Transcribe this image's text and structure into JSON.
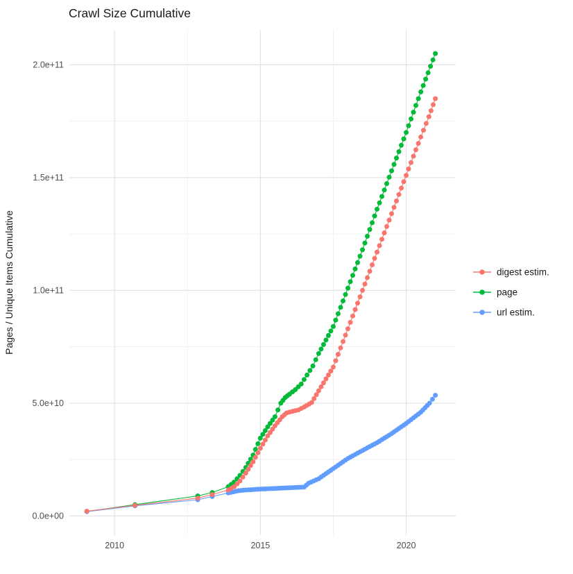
{
  "title": "Crawl Size Cumulative",
  "axes": {
    "y_label": "Pages / Unique Items Cumulative",
    "x_label": ""
  },
  "legend": {
    "position": "right",
    "items": [
      {
        "label": "digest estim.",
        "color": "#F8766D",
        "series": "digest estim."
      },
      {
        "label": "page",
        "color": "#00BA38",
        "series": "page"
      },
      {
        "label": "url estim.",
        "color": "#619CFF",
        "series": "url estim."
      }
    ]
  },
  "colors": {
    "background": "#ffffff",
    "grid_major": "#e3e3e3",
    "grid_minor": "#f1f1f1",
    "tick_text": "#4d4d4d",
    "title_text": "#1a1a1a"
  },
  "chart_data": {
    "type": "line",
    "title": "Crawl Size Cumulative",
    "xlabel": "",
    "ylabel": "Pages / Unique Items Cumulative",
    "xlim": [
      2008.45,
      2021.7
    ],
    "ylim": [
      -8500000000.0,
      215500000000.0
    ],
    "grid": true,
    "legend_position": "right",
    "x_ticks": [
      {
        "value": 2010,
        "label": "2010"
      },
      {
        "value": 2015,
        "label": "2015"
      },
      {
        "value": 2020,
        "label": "2020"
      }
    ],
    "y_ticks": [
      {
        "value": 0.0,
        "label": "0.0e+00"
      },
      {
        "value": 50000000000.0,
        "label": "5.0e+10"
      },
      {
        "value": 100000000000.0,
        "label": "1.0e+11"
      },
      {
        "value": 150000000000.0,
        "label": "1.5e+11"
      },
      {
        "value": 200000000000.0,
        "label": "2.0e+11"
      }
    ],
    "x_minor": [
      2012.5,
      2017.5
    ],
    "y_minor": [
      25000000000.0,
      75000000000.0,
      125000000000.0,
      175000000000.0
    ],
    "dense_points_from": 2013.85,
    "points_per_year_when_dense": 12,
    "draw_order": [
      "page",
      "url estim.",
      "digest estim."
    ],
    "series": [
      {
        "name": "digest estim.",
        "color": "#F8766D",
        "points": [
          [
            2009.05,
            2100000000.0
          ],
          [
            2010.7,
            4700000000.0
          ],
          [
            2012.85,
            7900000000.0
          ],
          [
            2013.35,
            9500000000.0
          ],
          [
            2013.9,
            11500000000.0
          ],
          [
            2014.1,
            13000000000.0
          ],
          [
            2014.3,
            15500000000.0
          ],
          [
            2014.5,
            19000000000.0
          ],
          [
            2014.75,
            24000000000.0
          ],
          [
            2015.0,
            30000000000.0
          ],
          [
            2015.25,
            35500000000.0
          ],
          [
            2015.5,
            40000000000.0
          ],
          [
            2015.75,
            44000000000.0
          ],
          [
            2015.9,
            45700000000.0
          ],
          [
            2016.1,
            46400000000.0
          ],
          [
            2016.3,
            47000000000.0
          ],
          [
            2016.5,
            48300000000.0
          ],
          [
            2016.76,
            50300000000.0
          ],
          [
            2017.0,
            55500000000.0
          ],
          [
            2017.5,
            66000000000.0
          ],
          [
            2018.0,
            83000000000.0
          ],
          [
            2018.5,
            100000000000.0
          ],
          [
            2019.0,
            117000000000.0
          ],
          [
            2019.5,
            134000000000.0
          ],
          [
            2020.0,
            151000000000.0
          ],
          [
            2020.5,
            168000000000.0
          ],
          [
            2020.78,
            177000000000.0
          ],
          [
            2021.0,
            185000000000.0
          ]
        ]
      },
      {
        "name": "page",
        "color": "#00BA38",
        "points": [
          [
            2009.05,
            2000000000.0
          ],
          [
            2010.7,
            5000000000.0
          ],
          [
            2012.85,
            8900000000.0
          ],
          [
            2013.35,
            10400000000.0
          ],
          [
            2013.9,
            13000000000.0
          ],
          [
            2014.1,
            15000000000.0
          ],
          [
            2014.3,
            18000000000.0
          ],
          [
            2014.5,
            21500000000.0
          ],
          [
            2014.75,
            27000000000.0
          ],
          [
            2015.0,
            34500000000.0
          ],
          [
            2015.25,
            39500000000.0
          ],
          [
            2015.5,
            44000000000.0
          ],
          [
            2015.7,
            50000000000.0
          ],
          [
            2015.85,
            52500000000.0
          ],
          [
            2016.0,
            54000000000.0
          ],
          [
            2016.2,
            56000000000.0
          ],
          [
            2016.4,
            58500000000.0
          ],
          [
            2016.6,
            62500000000.0
          ],
          [
            2016.8,
            66500000000.0
          ],
          [
            2017.0,
            72000000000.0
          ],
          [
            2017.5,
            84000000000.0
          ],
          [
            2018.0,
            101000000000.0
          ],
          [
            2018.5,
            118000000000.0
          ],
          [
            2019.0,
            136000000000.0
          ],
          [
            2019.5,
            153000000000.0
          ],
          [
            2020.0,
            170000000000.0
          ],
          [
            2020.5,
            188000000000.0
          ],
          [
            2021.0,
            205000000000.0
          ]
        ]
      },
      {
        "name": "url estim.",
        "color": "#619CFF",
        "points": [
          [
            2009.05,
            1900000000.0
          ],
          [
            2010.7,
            4500000000.0
          ],
          [
            2012.85,
            7200000000.0
          ],
          [
            2013.35,
            8600000000.0
          ],
          [
            2013.9,
            10200000000.0
          ],
          [
            2014.25,
            11200000000.0
          ],
          [
            2014.5,
            11500000000.0
          ],
          [
            2015.0,
            11900000000.0
          ],
          [
            2015.5,
            12200000000.0
          ],
          [
            2016.0,
            12500000000.0
          ],
          [
            2016.5,
            12800000000.0
          ],
          [
            2016.65,
            14500000000.0
          ],
          [
            2017.0,
            16500000000.0
          ],
          [
            2017.5,
            21000000000.0
          ],
          [
            2018.0,
            25500000000.0
          ],
          [
            2018.5,
            29000000000.0
          ],
          [
            2019.0,
            32500000000.0
          ],
          [
            2019.5,
            36500000000.0
          ],
          [
            2020.0,
            41000000000.0
          ],
          [
            2020.5,
            46000000000.0
          ],
          [
            2020.8,
            50000000000.0
          ],
          [
            2021.0,
            53500000000.0
          ]
        ]
      }
    ]
  }
}
